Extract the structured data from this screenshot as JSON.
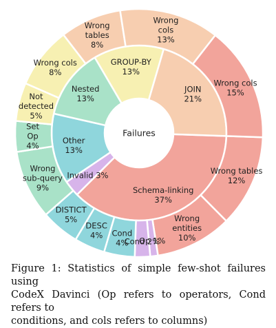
{
  "chart_data": {
    "type": "sunburst",
    "center_label": "Failures",
    "inner": [
      {
        "name": "Schema-linking",
        "value": 37,
        "label": [
          "Schema-linking",
          "37%"
        ],
        "color": "#f2a49b"
      },
      {
        "name": "Invalid",
        "value": 3,
        "label": [
          "Invalid 3%"
        ],
        "color": "#d7b4ea"
      },
      {
        "name": "Other",
        "value": 13,
        "label": [
          "Other",
          "13%"
        ],
        "color": "#8fd6dc"
      },
      {
        "name": "Nested",
        "value": 13,
        "label": [
          "Nested",
          "13%"
        ],
        "color": "#a9e2c8"
      },
      {
        "name": "GROUP-BY",
        "value": 13,
        "label": [
          "GROUP-BY",
          "13%"
        ],
        "color": "#f7f0b2"
      },
      {
        "name": "JOIN",
        "value": 21,
        "label": [
          "JOIN",
          "21%"
        ],
        "color": "#f7ceb0"
      }
    ],
    "outer": [
      {
        "name": "Wrong tables",
        "parent": "Schema-linking",
        "value": 12,
        "label": [
          "Wrong tables",
          "12%"
        ],
        "color": "#f2a49b"
      },
      {
        "name": "Wrong entities",
        "parent": "Schema-linking",
        "value": 10,
        "label": [
          "Wrong",
          "entities",
          "10%"
        ],
        "color": "#f2a49b"
      },
      {
        "name": "Op",
        "parent": "Invalid",
        "value": 1,
        "label": [
          "Op 1%"
        ],
        "color": "#d7b4ea"
      },
      {
        "name": "Cond",
        "parent": "Invalid",
        "value": 2,
        "label": [
          "Cond 2%"
        ],
        "color": "#d7b4ea"
      },
      {
        "name": "Cond",
        "parent": "Other",
        "value": 4,
        "label": [
          "Cond",
          "4%"
        ],
        "color": "#8fd6dc"
      },
      {
        "name": "DESC",
        "parent": "Other",
        "value": 4,
        "label": [
          "DESC",
          "4%"
        ],
        "color": "#8fd6dc"
      },
      {
        "name": "DISTICT",
        "parent": "Other",
        "value": 5,
        "label": [
          "DISTICT",
          "5%"
        ],
        "color": "#8fd6dc"
      },
      {
        "name": "Wrong sub-query",
        "parent": "Nested",
        "value": 9,
        "label": [
          "Wrong",
          "sub-query",
          "9%"
        ],
        "color": "#a9e2c8"
      },
      {
        "name": "Set Op",
        "parent": "Nested",
        "value": 4,
        "label": [
          "Set",
          "Op",
          "4%"
        ],
        "color": "#a9e2c8"
      },
      {
        "name": "Not detected",
        "parent": "GROUP-BY",
        "value": 5,
        "label": [
          "Not",
          "detected",
          "5%"
        ],
        "color": "#f7f0b2"
      },
      {
        "name": "Wrong cols",
        "parent": "GROUP-BY",
        "value": 8,
        "label": [
          "Wrong cols",
          "8%"
        ],
        "color": "#f7f0b2"
      },
      {
        "name": "Wrong tables",
        "parent": "JOIN",
        "value": 8,
        "label": [
          "Wrong",
          "tables",
          "8%"
        ],
        "color": "#f7ceb0"
      },
      {
        "name": "Wrong cols",
        "parent": "JOIN",
        "value": 13,
        "label": [
          "Wrong",
          "cols",
          "13%"
        ],
        "color": "#f7ceb0"
      },
      {
        "name": "Wrong cols",
        "parent": "Schema-linking",
        "value": 15,
        "label": [
          "Wrong cols",
          "15%"
        ],
        "color": "#f2a49b"
      }
    ]
  },
  "caption": {
    "lines": [
      "Figure 1:  Statistics of simple few-shot failures using",
      "CodeX Davinci (Op refers to operators, Cond refers to",
      "conditions, and cols refers to columns)"
    ]
  }
}
